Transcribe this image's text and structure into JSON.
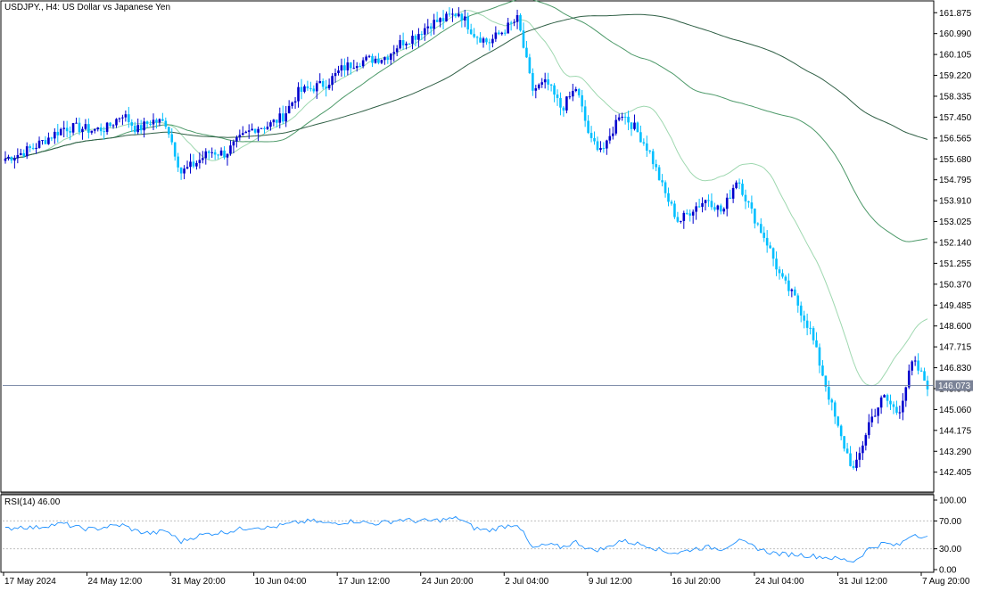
{
  "header": {
    "symbol": "USDJPY.",
    "timeframe": "H4",
    "description": "US Dollar vs Japanese Yen",
    "title_text": "USDJPY., H4:  US Dollar vs Japanese Yen"
  },
  "price_axis": {
    "ticks": [
      "161.875",
      "160.990",
      "160.105",
      "159.220",
      "158.335",
      "157.450",
      "156.565",
      "155.680",
      "154.795",
      "153.910",
      "153.025",
      "152.140",
      "151.255",
      "150.370",
      "149.485",
      "148.600",
      "147.715",
      "146.830",
      "145.945",
      "145.060",
      "144.175",
      "143.290",
      "142.405"
    ],
    "min": 141.6,
    "max": 162.3,
    "current_price": "146.073",
    "current_price_value": 146.073
  },
  "rsi": {
    "label_text": "RSI(14) 46.00",
    "period": 14,
    "value": "46.00",
    "ticks": [
      "100.00",
      "70.00",
      "30.00",
      "0.00"
    ],
    "levels": [
      70,
      30
    ]
  },
  "time_axis": {
    "labels": [
      "17 May 2024",
      "24 May 12:00",
      "31 May 20:00",
      "10 Jun 04:00",
      "17 Jun 12:00",
      "24 Jun 20:00",
      "2 Jul 04:00",
      "9 Jul 12:00",
      "16 Jul 20:00",
      "24 Jul 04:00",
      "31 Jul 12:00",
      "7 Aug 20:00"
    ]
  },
  "colors": {
    "bull": "#0000cd",
    "bear": "#00bfff",
    "ma_fast": "#9fd8b0",
    "ma_mid": "#4e9a6a",
    "ma_slow": "#2f5f45",
    "rsi_line": "#1e90ff",
    "price_line": "#7080a0",
    "grid": "#c0c0c0"
  },
  "chart_data": {
    "type": "line",
    "series": [
      {
        "values": [
          155.7,
          155.9,
          156.2,
          156.6,
          157.0,
          157.0,
          156.9,
          157.0,
          157.6,
          156.9,
          157.3,
          157.2,
          155.1,
          155.5,
          156.0,
          155.9,
          156.5,
          157.0,
          157.1,
          157.5,
          158.5,
          158.7,
          158.9,
          159.5,
          159.8,
          159.9,
          160.0,
          160.6,
          160.9,
          161.4,
          161.6,
          161.9,
          161.0,
          160.6,
          161.1,
          161.6,
          158.6,
          158.9,
          157.8,
          158.7,
          156.4,
          156.1,
          157.7,
          157.0,
          156.0,
          154.3,
          153.0,
          153.6,
          154.0,
          153.4,
          154.9,
          153.4,
          152.2,
          150.6,
          149.7,
          148.4,
          146.2,
          144.0,
          142.4,
          144.5,
          145.6,
          144.9,
          147.1,
          146.1
        ]
      },
      {
        "name": "RSI(14)",
        "values": [
          58,
          62,
          60,
          64,
          66,
          60,
          58,
          62,
          64,
          55,
          52,
          56,
          40,
          48,
          52,
          54,
          58,
          62,
          60,
          64,
          68,
          70,
          66,
          68,
          70,
          66,
          68,
          72,
          70,
          70,
          72,
          74,
          60,
          56,
          62,
          66,
          30,
          36,
          32,
          40,
          28,
          30,
          42,
          38,
          34,
          26,
          24,
          30,
          32,
          30,
          42,
          34,
          26,
          22,
          22,
          20,
          18,
          15,
          12,
          30,
          38,
          34,
          52,
          46
        ]
      }
    ],
    "ma_levels_at_end": {
      "fast": 148.9,
      "mid": 152.3,
      "slow": 156.5
    },
    "xlabel": "",
    "ylabel": "",
    "ylim": [
      141.6,
      162.3
    ],
    "grid": false
  }
}
